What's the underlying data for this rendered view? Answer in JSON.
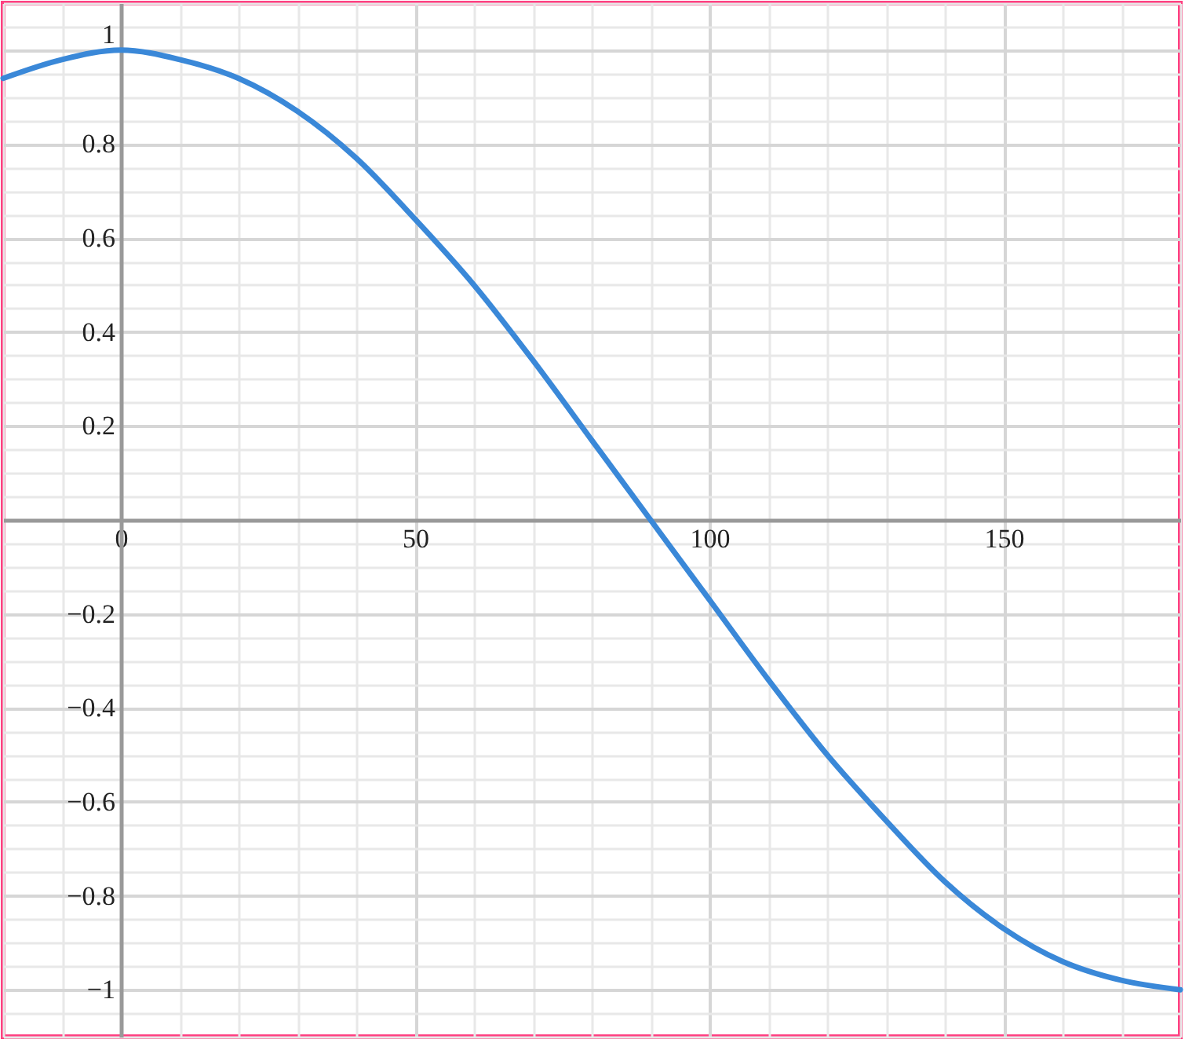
{
  "chart_data": {
    "type": "line",
    "x": [
      -20,
      -10,
      0,
      10,
      20,
      30,
      40,
      50,
      60,
      70,
      80,
      90,
      100,
      110,
      120,
      130,
      140,
      150,
      160,
      170,
      180
    ],
    "series": [
      {
        "color": "#3a88d8",
        "values": [
          0.94,
          0.98,
          1,
          0.98,
          0.94,
          0.87,
          0.77,
          0.64,
          0.5,
          0.34,
          0.17,
          0,
          -0.17,
          -0.34,
          -0.5,
          -0.64,
          -0.77,
          -0.87,
          -0.94,
          -0.98,
          -1
        ]
      }
    ],
    "xlim": [
      -20,
      180
    ],
    "ylim": [
      -1.1,
      1.1
    ],
    "xticks": [
      0,
      50,
      100,
      150
    ],
    "yticks": [
      {
        "value": -1,
        "label": "−1"
      },
      {
        "value": -0.8,
        "label": "−0.8"
      },
      {
        "value": -0.6,
        "label": "−0.6"
      },
      {
        "value": -0.4,
        "label": "−0.4"
      },
      {
        "value": -0.2,
        "label": "−0.2"
      },
      0.2,
      0.4,
      0.6,
      0.8,
      1
    ],
    "grid": true,
    "marker": "none",
    "line_style": "solid"
  }
}
